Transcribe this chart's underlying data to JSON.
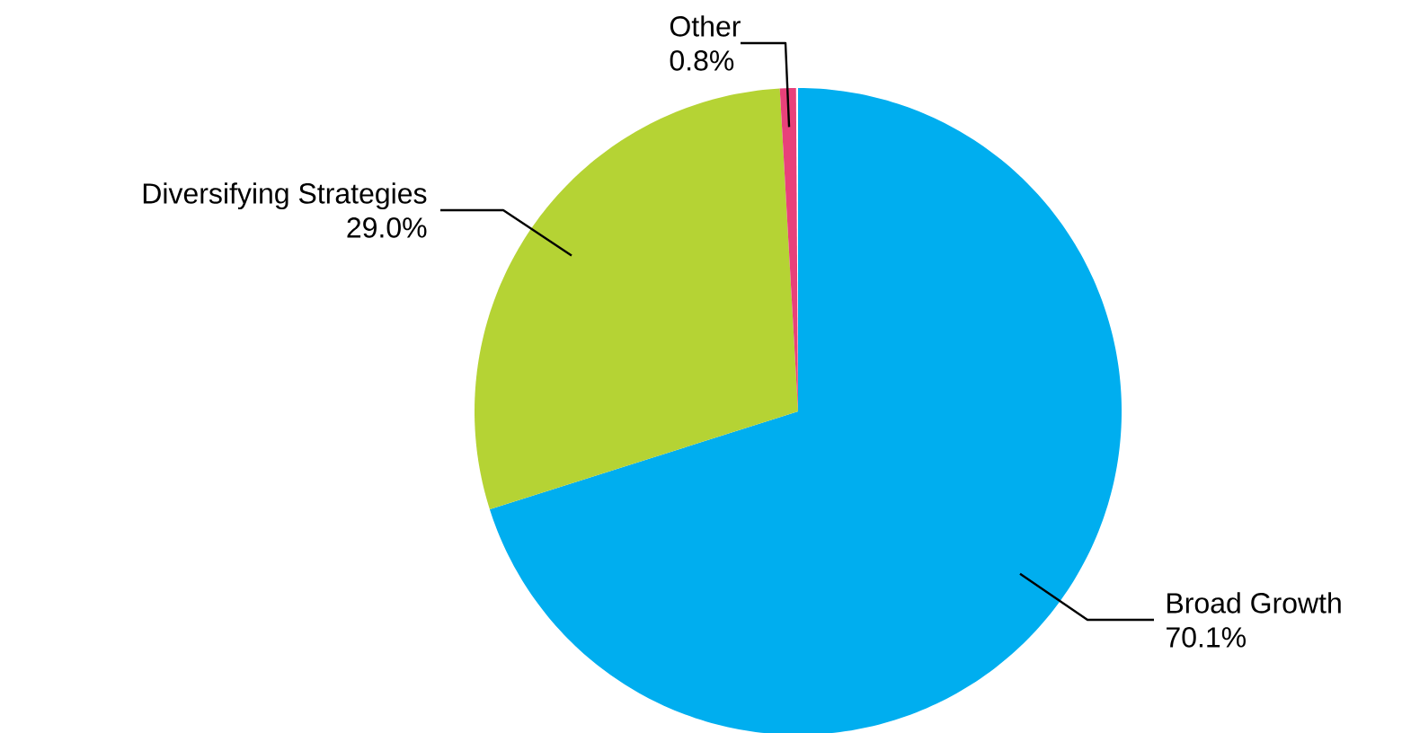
{
  "chart_data": {
    "type": "pie",
    "categories": [
      "Broad Growth",
      "Diversifying Strategies",
      "Other"
    ],
    "values": [
      70.1,
      29.0,
      0.8
    ],
    "value_labels": [
      "70.1%",
      "29.0%",
      "0.8%"
    ],
    "colors": [
      "#00aeef",
      "#b5d334",
      "#e8417a"
    ]
  }
}
